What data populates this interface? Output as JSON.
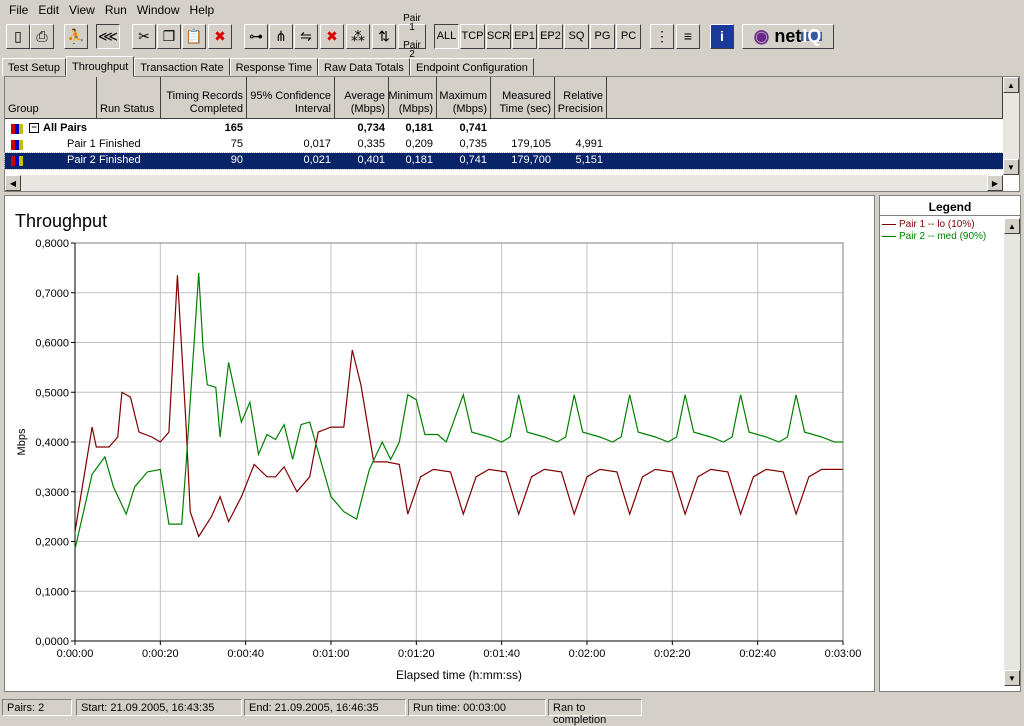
{
  "menu": [
    "File",
    "Edit",
    "View",
    "Run",
    "Window",
    "Help"
  ],
  "toolbar": {
    "text_buttons": [
      "ALL",
      "TCP",
      "SCR",
      "EP1",
      "EP2",
      "SQ",
      "PG",
      "PC"
    ],
    "pair_button": [
      "Pair 1",
      "Pair 2"
    ],
    "logo": "netIQ",
    "icons": [
      "new-icon",
      "print-icon",
      "run-icon",
      "stop-icon",
      "cut-icon",
      "copy-icon",
      "paste-icon",
      "delete-icon",
      "pair-icon",
      "multicast-icon",
      "endpoint-icon",
      "delete-pair-icon",
      "network-icon",
      "swap-icon",
      "grid-icon",
      "list-icon",
      "info-icon"
    ]
  },
  "tabs": [
    "Test Setup",
    "Throughput",
    "Transaction Rate",
    "Response Time",
    "Raw Data Totals",
    "Endpoint Configuration"
  ],
  "active_tab": "Throughput",
  "table": {
    "columns": [
      "Group",
      "Run Status",
      "Timing Records Completed",
      "95% Confidence Interval",
      "Average (Mbps)",
      "Minimum (Mbps)",
      "Maximum (Mbps)",
      "Measured Time (sec)",
      "Relative Precision"
    ],
    "rows": [
      {
        "group": "All Pairs",
        "status": "",
        "records": "165",
        "ci": "",
        "avg": "0,734",
        "min": "0,181",
        "max": "0,741",
        "time": "",
        "prec": ""
      },
      {
        "group": "Pair 1",
        "status": "Finished",
        "records": "75",
        "ci": "0,017",
        "avg": "0,335",
        "min": "0,209",
        "max": "0,735",
        "time": "179,105",
        "prec": "4,991"
      },
      {
        "group": "Pair 2",
        "status": "Finished",
        "records": "90",
        "ci": "0,021",
        "avg": "0,401",
        "min": "0,181",
        "max": "0,741",
        "time": "179,700",
        "prec": "5,151"
      }
    ]
  },
  "legend": {
    "title": "Legend",
    "items": [
      "Pair 1 -- lo (10%)",
      "Pair 2 -- med (90%)"
    ]
  },
  "status": [
    "Pairs: 2",
    "Start: 21.09.2005, 16:43:35",
    "End: 21.09.2005, 16:46:35",
    "Run time: 00:03:00",
    "Ran to completion"
  ],
  "chart_data": {
    "type": "line",
    "title": "Throughput",
    "xlabel": "Elapsed time (h:mm:ss)",
    "ylabel": "Mbps",
    "xlim": [
      "0:00:00",
      "0:03:00"
    ],
    "ylim": [
      0,
      0.8
    ],
    "grid": true,
    "legend": "right",
    "xticks": [
      "0:00:00",
      "0:00:20",
      "0:00:40",
      "0:01:00",
      "0:01:20",
      "0:01:40",
      "0:02:00",
      "0:02:20",
      "0:02:40",
      "0:03:00"
    ],
    "yticks": [
      "0,0000",
      "0,1000",
      "0,2000",
      "0,3000",
      "0,4000",
      "0,5000",
      "0,6000",
      "0,7000",
      "0,8000"
    ],
    "series": [
      {
        "name": "Pair 1 -- lo (10%)",
        "color": "#800000",
        "points": [
          [
            "0:00:00",
            0.22
          ],
          [
            "0:00:04",
            0.43
          ],
          [
            "0:00:05",
            0.39
          ],
          [
            "0:00:08",
            0.39
          ],
          [
            "0:00:10",
            0.41
          ],
          [
            "0:00:11",
            0.5
          ],
          [
            "0:00:13",
            0.49
          ],
          [
            "0:00:15",
            0.42
          ],
          [
            "0:00:18",
            0.41
          ],
          [
            "0:00:20",
            0.4
          ],
          [
            "0:00:22",
            0.42
          ],
          [
            "0:00:24",
            0.735
          ],
          [
            "0:00:26",
            0.44
          ],
          [
            "0:00:27",
            0.26
          ],
          [
            "0:00:29",
            0.21
          ],
          [
            "0:00:32",
            0.25
          ],
          [
            "0:00:34",
            0.29
          ],
          [
            "0:00:36",
            0.24
          ],
          [
            "0:00:39",
            0.29
          ],
          [
            "0:00:42",
            0.355
          ],
          [
            "0:00:45",
            0.33
          ],
          [
            "0:00:47",
            0.33
          ],
          [
            "0:00:49",
            0.35
          ],
          [
            "0:00:52",
            0.3
          ],
          [
            "0:00:55",
            0.33
          ],
          [
            "0:00:57",
            0.42
          ],
          [
            "0:01:00",
            0.43
          ],
          [
            "0:01:03",
            0.43
          ],
          [
            "0:01:05",
            0.585
          ],
          [
            "0:01:07",
            0.515
          ],
          [
            "0:01:10",
            0.36
          ],
          [
            "0:01:13",
            0.36
          ],
          [
            "0:01:16",
            0.355
          ],
          [
            "0:01:18",
            0.255
          ],
          [
            "0:01:21",
            0.33
          ],
          [
            "0:01:24",
            0.345
          ],
          [
            "0:01:28",
            0.34
          ],
          [
            "0:01:31",
            0.255
          ],
          [
            "0:01:34",
            0.33
          ],
          [
            "0:01:37",
            0.345
          ],
          [
            "0:01:41",
            0.34
          ],
          [
            "0:01:44",
            0.255
          ],
          [
            "0:01:47",
            0.33
          ],
          [
            "0:01:50",
            0.345
          ],
          [
            "0:01:54",
            0.34
          ],
          [
            "0:01:57",
            0.255
          ],
          [
            "0:02:00",
            0.33
          ],
          [
            "0:02:03",
            0.345
          ],
          [
            "0:02:07",
            0.34
          ],
          [
            "0:02:10",
            0.255
          ],
          [
            "0:02:13",
            0.33
          ],
          [
            "0:02:16",
            0.345
          ],
          [
            "0:02:20",
            0.34
          ],
          [
            "0:02:23",
            0.255
          ],
          [
            "0:02:26",
            0.33
          ],
          [
            "0:02:29",
            0.345
          ],
          [
            "0:02:33",
            0.34
          ],
          [
            "0:02:36",
            0.255
          ],
          [
            "0:02:39",
            0.33
          ],
          [
            "0:02:42",
            0.345
          ],
          [
            "0:02:46",
            0.34
          ],
          [
            "0:02:49",
            0.255
          ],
          [
            "0:02:52",
            0.33
          ],
          [
            "0:02:55",
            0.345
          ],
          [
            "0:03:00",
            0.345
          ]
        ]
      },
      {
        "name": "Pair 2 -- med (90%)",
        "color": "#008000",
        "points": [
          [
            "0:00:00",
            0.185
          ],
          [
            "0:00:04",
            0.335
          ],
          [
            "0:00:07",
            0.37
          ],
          [
            "0:00:09",
            0.31
          ],
          [
            "0:00:12",
            0.255
          ],
          [
            "0:00:14",
            0.31
          ],
          [
            "0:00:17",
            0.34
          ],
          [
            "0:00:20",
            0.345
          ],
          [
            "0:00:22",
            0.235
          ],
          [
            "0:00:25",
            0.235
          ],
          [
            "0:00:26",
            0.35
          ],
          [
            "0:00:29",
            0.74
          ],
          [
            "0:00:30",
            0.59
          ],
          [
            "0:00:31",
            0.515
          ],
          [
            "0:00:33",
            0.51
          ],
          [
            "0:00:34",
            0.41
          ],
          [
            "0:00:36",
            0.56
          ],
          [
            "0:00:39",
            0.44
          ],
          [
            "0:00:41",
            0.48
          ],
          [
            "0:00:43",
            0.375
          ],
          [
            "0:00:45",
            0.415
          ],
          [
            "0:00:47",
            0.405
          ],
          [
            "0:00:49",
            0.435
          ],
          [
            "0:00:51",
            0.365
          ],
          [
            "0:00:53",
            0.435
          ],
          [
            "0:00:55",
            0.44
          ],
          [
            "0:00:57",
            0.38
          ],
          [
            "0:01:00",
            0.29
          ],
          [
            "0:01:03",
            0.26
          ],
          [
            "0:01:06",
            0.245
          ],
          [
            "0:01:09",
            0.345
          ],
          [
            "0:01:12",
            0.4
          ],
          [
            "0:01:14",
            0.365
          ],
          [
            "0:01:16",
            0.4
          ],
          [
            "0:01:18",
            0.495
          ],
          [
            "0:01:20",
            0.485
          ],
          [
            "0:01:22",
            0.415
          ],
          [
            "0:01:25",
            0.415
          ],
          [
            "0:01:27",
            0.4
          ],
          [
            "0:01:31",
            0.495
          ],
          [
            "0:01:33",
            0.42
          ],
          [
            "0:01:37",
            0.41
          ],
          [
            "0:01:40",
            0.4
          ],
          [
            "0:01:42",
            0.41
          ],
          [
            "0:01:44",
            0.495
          ],
          [
            "0:01:46",
            0.42
          ],
          [
            "0:01:50",
            0.41
          ],
          [
            "0:01:53",
            0.4
          ],
          [
            "0:01:55",
            0.41
          ],
          [
            "0:01:57",
            0.495
          ],
          [
            "0:01:59",
            0.42
          ],
          [
            "0:02:03",
            0.41
          ],
          [
            "0:02:06",
            0.4
          ],
          [
            "0:02:08",
            0.41
          ],
          [
            "0:02:10",
            0.495
          ],
          [
            "0:02:12",
            0.42
          ],
          [
            "0:02:16",
            0.41
          ],
          [
            "0:02:19",
            0.4
          ],
          [
            "0:02:21",
            0.41
          ],
          [
            "0:02:23",
            0.495
          ],
          [
            "0:02:25",
            0.42
          ],
          [
            "0:02:29",
            0.41
          ],
          [
            "0:02:32",
            0.4
          ],
          [
            "0:02:34",
            0.41
          ],
          [
            "0:02:36",
            0.495
          ],
          [
            "0:02:38",
            0.42
          ],
          [
            "0:02:42",
            0.41
          ],
          [
            "0:02:45",
            0.4
          ],
          [
            "0:02:47",
            0.41
          ],
          [
            "0:02:49",
            0.495
          ],
          [
            "0:02:51",
            0.42
          ],
          [
            "0:02:55",
            0.41
          ],
          [
            "0:02:58",
            0.4
          ],
          [
            "0:03:00",
            0.4
          ]
        ]
      }
    ]
  }
}
